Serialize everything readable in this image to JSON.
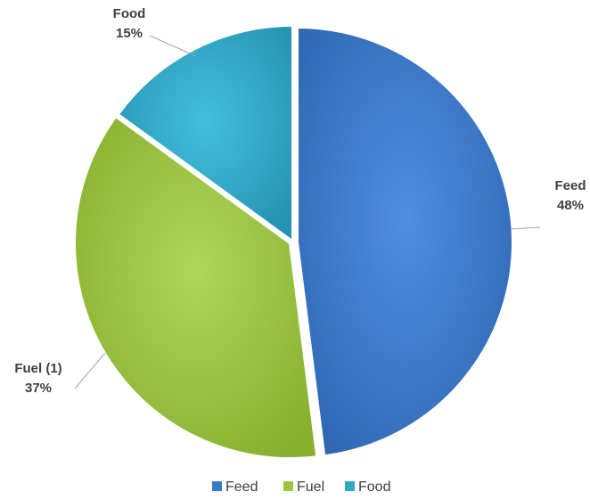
{
  "chart_data": {
    "type": "pie",
    "title": "",
    "slices": [
      {
        "label": "Feed",
        "display_name": "Feed",
        "value": 48,
        "value_label": "48%",
        "color": "#3A78C9"
      },
      {
        "label": "Fuel",
        "display_name": "Fuel (1)",
        "value": 37,
        "value_label": "37%",
        "color": "#9BC53D"
      },
      {
        "label": "Food",
        "display_name": "Food",
        "value": 15,
        "value_label": "15%",
        "color": "#2FA9C8"
      }
    ],
    "legend": {
      "position": "bottom",
      "items": [
        "Feed",
        "Fuel",
        "Food"
      ]
    }
  }
}
